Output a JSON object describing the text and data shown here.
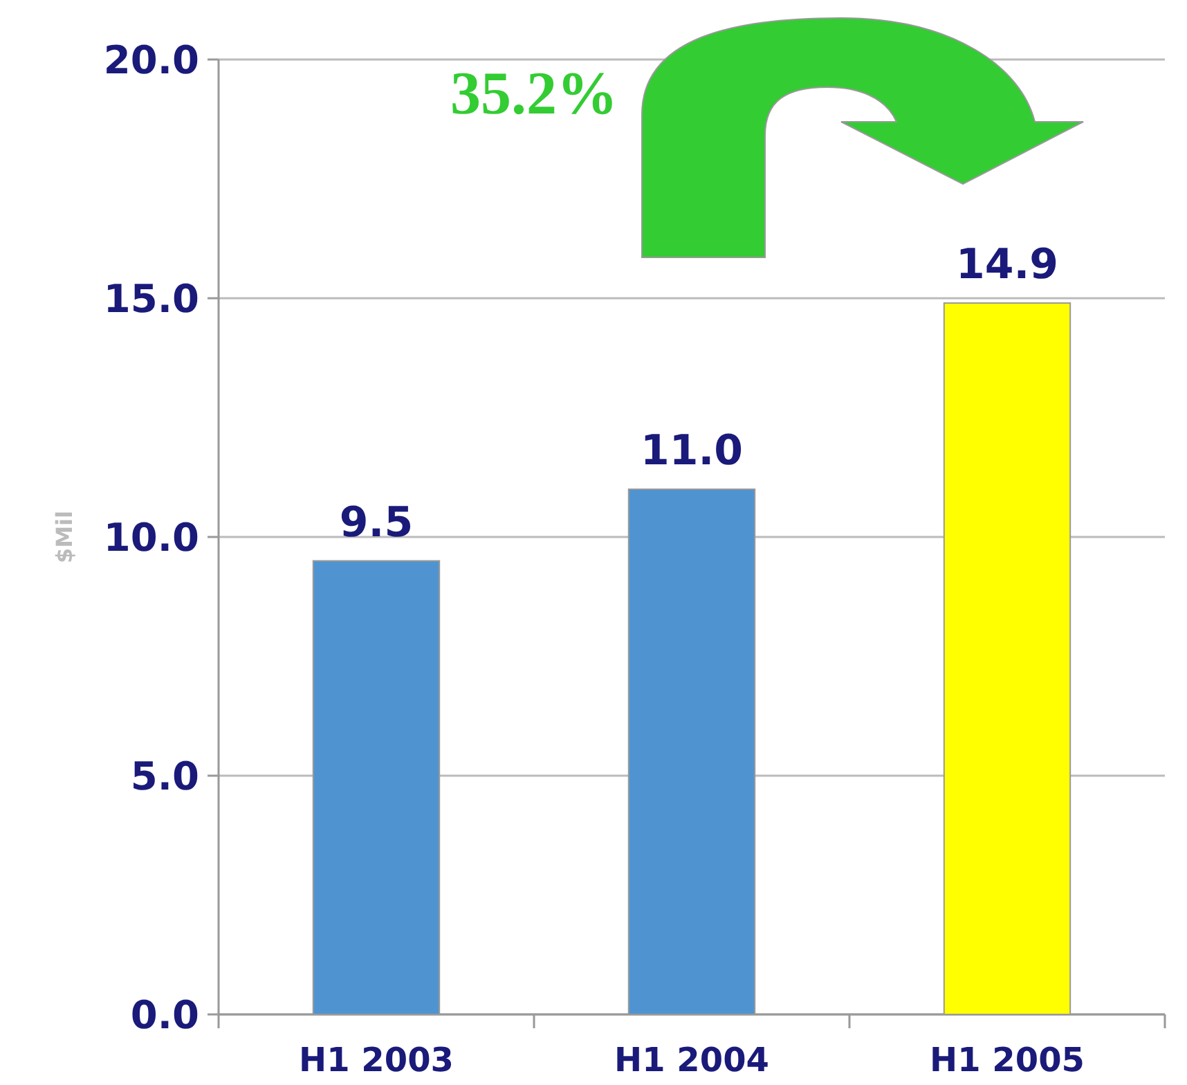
{
  "chart_data": {
    "type": "bar",
    "ylabel": "$Mil",
    "categories": [
      "H1 2003",
      "H1 2004",
      "H1 2005"
    ],
    "values": [
      9.5,
      11.0,
      14.9
    ],
    "colors": [
      "#4f94d0",
      "#4f94d0",
      "#ffff00"
    ],
    "value_labels": [
      "9.5",
      "11.0",
      "14.9"
    ],
    "ylim": [
      0,
      20
    ],
    "yticks": [
      {
        "value": 0,
        "label": "0.0"
      },
      {
        "value": 5,
        "label": "5.0"
      },
      {
        "value": 10,
        "label": "10.0"
      },
      {
        "value": 15,
        "label": "15.0"
      },
      {
        "value": 20,
        "label": "20.0"
      }
    ],
    "grid": "y",
    "annotations": [
      "35.2%"
    ]
  }
}
